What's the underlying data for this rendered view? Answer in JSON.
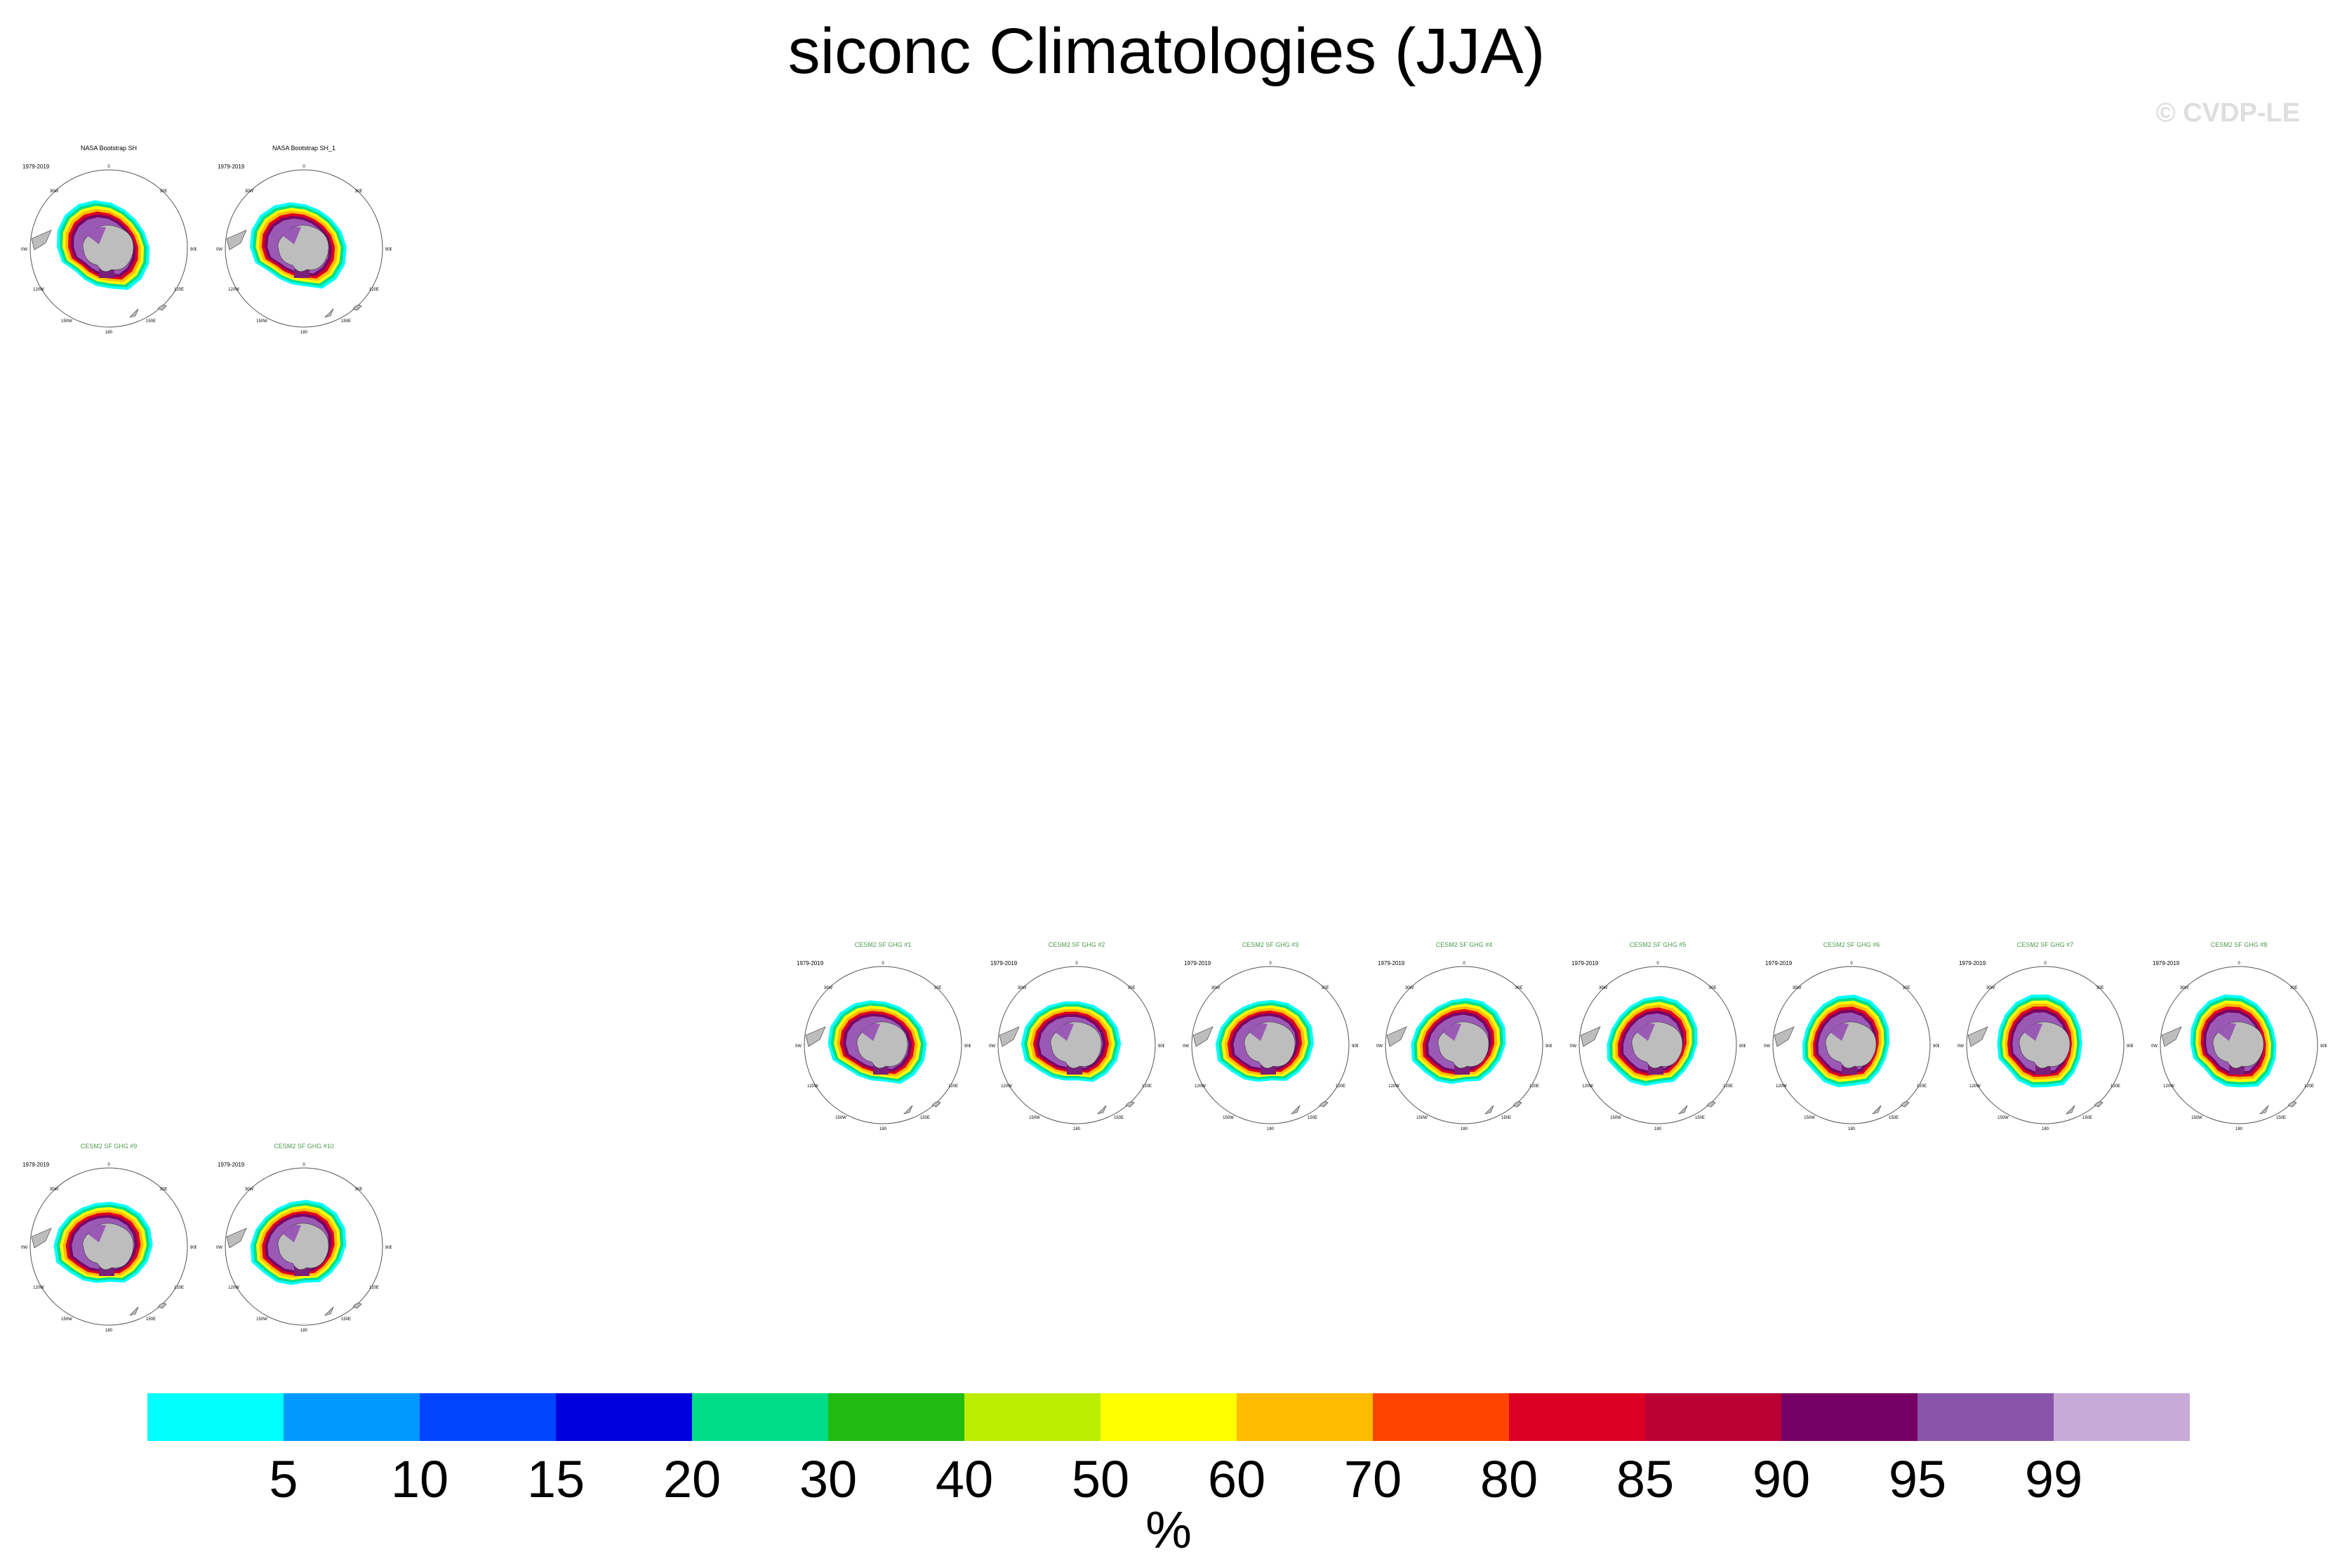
{
  "title": "siconc Climatologies (JJA)",
  "copyright": "© CVDP-LE",
  "period": "1979-2019",
  "rows": [
    {
      "panels": [
        {
          "title": "NASA Bootstrap SH",
          "kind": "obs"
        },
        {
          "title": "NASA Bootstrap SH_1",
          "kind": "obs"
        }
      ]
    },
    {
      "panels": [
        {
          "title": "CESM2 SF GHG #1",
          "kind": "model"
        },
        {
          "title": "CESM2 SF GHG #2",
          "kind": "model"
        },
        {
          "title": "CESM2 SF GHG #3",
          "kind": "model"
        },
        {
          "title": "CESM2 SF GHG #4",
          "kind": "model"
        },
        {
          "title": "CESM2 SF GHG #5",
          "kind": "model"
        },
        {
          "title": "CESM2 SF GHG #6",
          "kind": "model"
        },
        {
          "title": "CESM2 SF GHG #7",
          "kind": "model"
        },
        {
          "title": "CESM2 SF GHG #8",
          "kind": "model"
        }
      ]
    },
    {
      "panels": [
        {
          "title": "CESM2 SF GHG #9",
          "kind": "model"
        },
        {
          "title": "CESM2 SF GHG #10",
          "kind": "model"
        }
      ]
    }
  ],
  "map_labels": {
    "top": "0",
    "right": "90E",
    "left": "90W",
    "bottom": "180",
    "upper_left": "30W",
    "upper_right": "30E",
    "lower_left": "120W",
    "lower_right": "120E",
    "bottom_left": "150W",
    "bottom_right": "150E"
  },
  "colorbar": {
    "colors": [
      "#00ffff",
      "#0099ff",
      "#0044ff",
      "#0000dd",
      "#00dd88",
      "#22bb11",
      "#bbee00",
      "#ffff00",
      "#ffbb00",
      "#ff4400",
      "#dd0022",
      "#bb0033",
      "#770066",
      "#8855aa",
      "#c8aad8"
    ],
    "labels": [
      "5",
      "10",
      "15",
      "20",
      "30",
      "40",
      "50",
      "60",
      "70",
      "80",
      "85",
      "90",
      "95",
      "99"
    ],
    "units": "%"
  },
  "colors": {
    "land": "#bdbdbd",
    "ocean": "#ffffff",
    "ice_core": "#9b59b6",
    "ice_dark": "#7a1f7a"
  }
}
